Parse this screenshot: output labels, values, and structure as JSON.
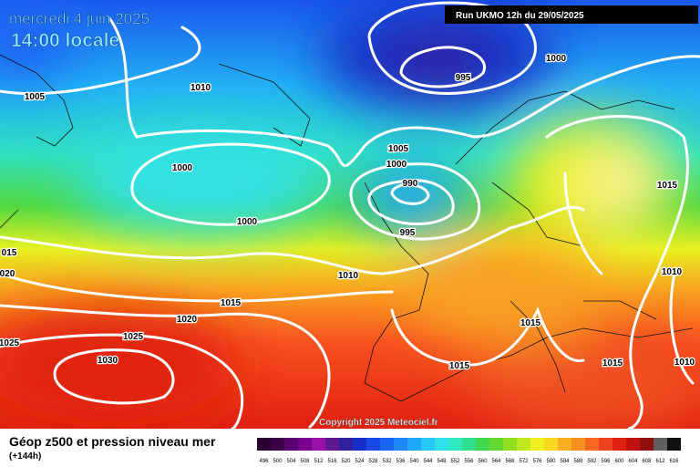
{
  "header": {
    "date": "mercredi 4 juin 2025",
    "time": "14:00 locale",
    "run": "Run UKMO 12h du 29/05/2025"
  },
  "isobar_labels": [
    "1005",
    "1010",
    "995",
    "1000",
    "1005",
    "1000",
    "990",
    "1000",
    "1000",
    "995",
    "1015",
    "015",
    "020",
    "1010",
    "1010",
    "1015",
    "1020",
    "1015",
    "1025",
    "1025",
    "1030",
    "1015",
    "1015",
    "1010"
  ],
  "copyright": "Copyright 2025 Meteociel.fr",
  "legend": {
    "title": "Géop z500 et pression niveau mer",
    "subtitle": "(+144h)",
    "labels": [
      496,
      500,
      504,
      508,
      512,
      516,
      520,
      524,
      528,
      532,
      536,
      540,
      544,
      548,
      552,
      556,
      560,
      564,
      568,
      572,
      576,
      580,
      584,
      588,
      592,
      596,
      600,
      604,
      608,
      612,
      616
    ],
    "colors": [
      "#2a0030",
      "#3a0046",
      "#5a0070",
      "#7a0090",
      "#9a10a8",
      "#601890",
      "#3020a0",
      "#1830c8",
      "#1848e8",
      "#1a66f5",
      "#1e88f8",
      "#20a8f8",
      "#24c8f4",
      "#30e0e8",
      "#30e8c0",
      "#30e090",
      "#40d850",
      "#60d830",
      "#90e020",
      "#c0e820",
      "#f0f020",
      "#f8d820",
      "#f8b020",
      "#f89020",
      "#f86820",
      "#f04020",
      "#e02010",
      "#c01010",
      "#901010",
      "#606060",
      "#101010"
    ]
  }
}
